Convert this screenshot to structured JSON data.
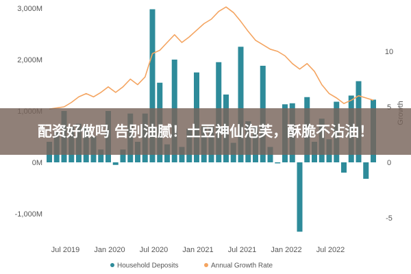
{
  "overlay_caption": "配资好做吗 告别油腻！土豆神仙泡芙，酥脆不沾油！",
  "chart_data": {
    "type": "bar",
    "left_axis": {
      "ticks": [
        -1000,
        0,
        1000,
        2000,
        3000
      ],
      "tick_labels": [
        "-1,000M",
        "0M",
        "1,000M",
        "2,000M",
        "3,000M"
      ],
      "range": [
        -1400,
        3050
      ]
    },
    "right_axis": {
      "ticks": [
        -5,
        0,
        5,
        10
      ],
      "tick_labels": [
        "-5",
        "0",
        "5",
        "10"
      ],
      "range": [
        -6,
        14
      ]
    },
    "right_axis_label": "Growth",
    "x_ticks": [
      {
        "index": 2,
        "label": "Jul 2019"
      },
      {
        "index": 8,
        "label": "Jan 2020"
      },
      {
        "index": 14,
        "label": "Jul 2020"
      },
      {
        "index": 20,
        "label": "Jan 2021"
      },
      {
        "index": 26,
        "label": "Jul 2021"
      },
      {
        "index": 32,
        "label": "Jan 2022"
      },
      {
        "index": 38,
        "label": "Jul 2022"
      }
    ],
    "series": [
      {
        "name": "Household Deposits",
        "axis": "left",
        "color": "#2e8b9a",
        "values": [
          400,
          600,
          1000,
          700,
          750,
          700,
          500,
          250,
          1000,
          -50,
          250,
          950,
          400,
          950,
          2980,
          1550,
          350,
          2000,
          300,
          650,
          1750,
          700,
          700,
          1950,
          1320,
          380,
          2250,
          800,
          700,
          1880,
          300,
          -20,
          1130,
          1150,
          -1350,
          1270,
          400,
          850,
          450,
          1180,
          -200,
          1300,
          1580,
          -320,
          1220
        ]
      },
      {
        "name": "Annual Growth Rate",
        "axis": "right",
        "color": "#f4a460",
        "values": [
          4.8,
          4.9,
          5.0,
          5.4,
          5.9,
          6.2,
          5.9,
          6.3,
          6.8,
          6.3,
          6.8,
          7.5,
          7.0,
          7.7,
          9.8,
          10.1,
          10.8,
          11.5,
          10.8,
          11.3,
          11.9,
          12.5,
          12.9,
          13.6,
          14.0,
          13.5,
          12.7,
          11.8,
          11.0,
          10.6,
          10.2,
          10.0,
          9.6,
          8.9,
          8.4,
          8.9,
          8.2,
          7.0,
          6.2,
          5.8,
          5.3,
          5.6,
          6.0,
          5.8,
          5.6
        ]
      }
    ],
    "legend_position": "bottom",
    "grid": false
  }
}
